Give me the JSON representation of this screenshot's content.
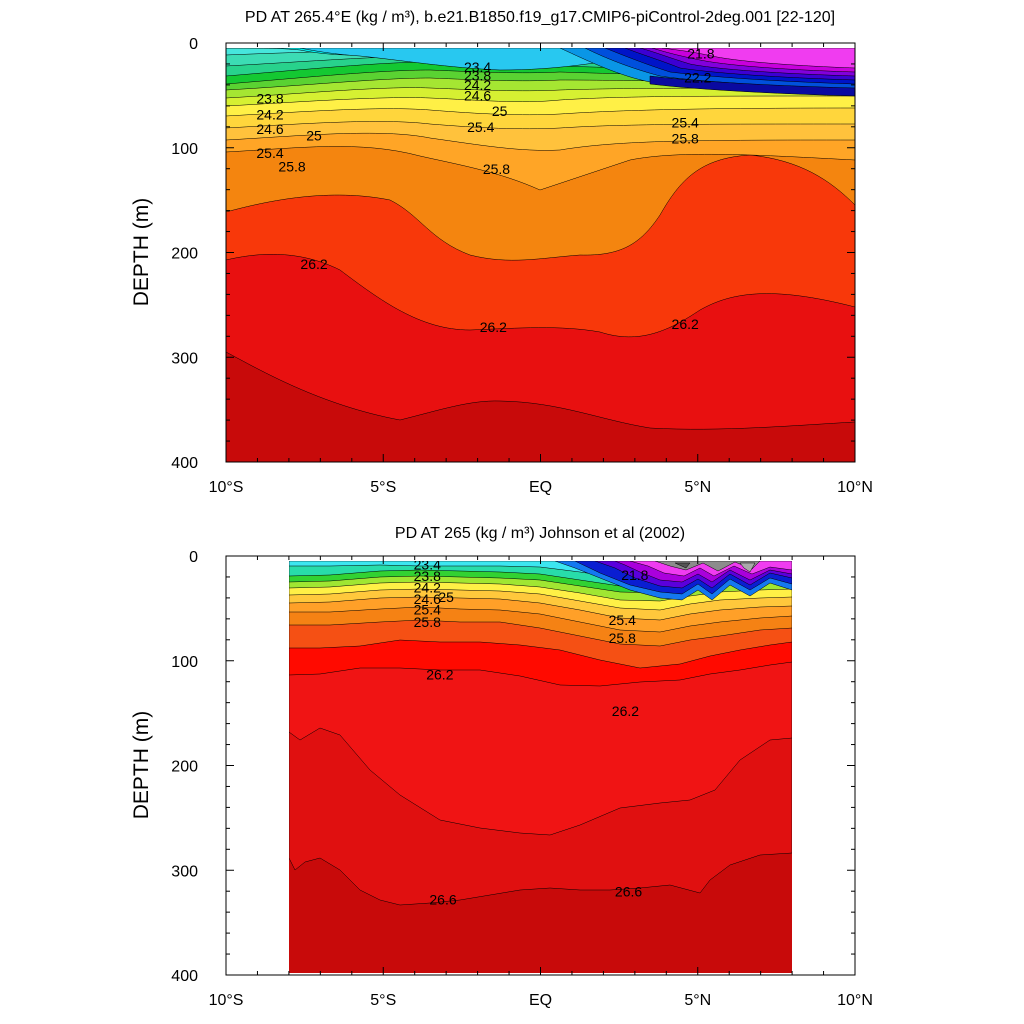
{
  "chart_data": [
    {
      "type": "contour",
      "title": "PD AT 265.4°E (kg / m³), b.e21.B1850.f19_g17.CMIP6-piControl-2deg.001 [22-120]",
      "ylabel": "DEPTH (m)",
      "xlabel": "",
      "x_ticks": [
        "10°S",
        "5°S",
        "EQ",
        "5°N",
        "10°N"
      ],
      "y_ticks": [
        "0",
        "100",
        "200",
        "300",
        "400"
      ],
      "xlim": [
        -10,
        10
      ],
      "ylim": [
        400,
        0
      ],
      "contour_labels": [
        {
          "text": "21.8",
          "x": 5.1,
          "y": 12
        },
        {
          "text": "22.2",
          "x": 5.0,
          "y": 35
        },
        {
          "text": "23.4",
          "x": -2.0,
          "y": 25
        },
        {
          "text": "23.8",
          "x": -2.0,
          "y": 33
        },
        {
          "text": "24.2",
          "x": -2.0,
          "y": 42
        },
        {
          "text": "24.6",
          "x": -2.0,
          "y": 52
        },
        {
          "text": "25",
          "x": -1.3,
          "y": 67
        },
        {
          "text": "25.4",
          "x": -1.9,
          "y": 82
        },
        {
          "text": "23.8",
          "x": -8.6,
          "y": 55
        },
        {
          "text": "24.2",
          "x": -8.6,
          "y": 70
        },
        {
          "text": "24.6",
          "x": -8.6,
          "y": 84
        },
        {
          "text": "25",
          "x": -7.2,
          "y": 90
        },
        {
          "text": "25.4",
          "x": -8.6,
          "y": 107
        },
        {
          "text": "25.8",
          "x": -7.9,
          "y": 120
        },
        {
          "text": "25.8",
          "x": -1.4,
          "y": 122
        },
        {
          "text": "25.4",
          "x": 4.6,
          "y": 78
        },
        {
          "text": "25.8",
          "x": 4.6,
          "y": 93
        },
        {
          "text": "26.2",
          "x": -7.2,
          "y": 213
        },
        {
          "text": "26.2",
          "x": -1.5,
          "y": 273
        },
        {
          "text": "26.2",
          "x": 4.6,
          "y": 270
        }
      ]
    },
    {
      "type": "contour",
      "title": "PD AT 265 (kg / m³) Johnson et al (2002)",
      "ylabel": "DEPTH (m)",
      "xlabel": "",
      "x_ticks": [
        "10°S",
        "5°S",
        "EQ",
        "5°N",
        "10°N"
      ],
      "y_ticks": [
        "0",
        "100",
        "200",
        "300",
        "400"
      ],
      "xlim": [
        -10,
        10
      ],
      "ylim": [
        400,
        0
      ],
      "data_extent_x": [
        -8,
        8
      ],
      "contour_labels": [
        {
          "text": "21.8",
          "x": 3.0,
          "y": 20
        },
        {
          "text": "23.4",
          "x": -3.6,
          "y": 10
        },
        {
          "text": "23.8",
          "x": -3.6,
          "y": 21
        },
        {
          "text": "24.2",
          "x": -3.6,
          "y": 32
        },
        {
          "text": "24.6",
          "x": -3.6,
          "y": 43
        },
        {
          "text": "25",
          "x": -3.0,
          "y": 41
        },
        {
          "text": "25.4",
          "x": -3.6,
          "y": 53
        },
        {
          "text": "25.8",
          "x": -3.6,
          "y": 65
        },
        {
          "text": "25.4",
          "x": 2.6,
          "y": 63
        },
        {
          "text": "25.8",
          "x": 2.6,
          "y": 80
        },
        {
          "text": "26.2",
          "x": -3.2,
          "y": 115
        },
        {
          "text": "26.2",
          "x": 2.7,
          "y": 150
        },
        {
          "text": "26.6",
          "x": -3.1,
          "y": 330
        },
        {
          "text": "26.6",
          "x": 2.8,
          "y": 322
        }
      ]
    }
  ]
}
